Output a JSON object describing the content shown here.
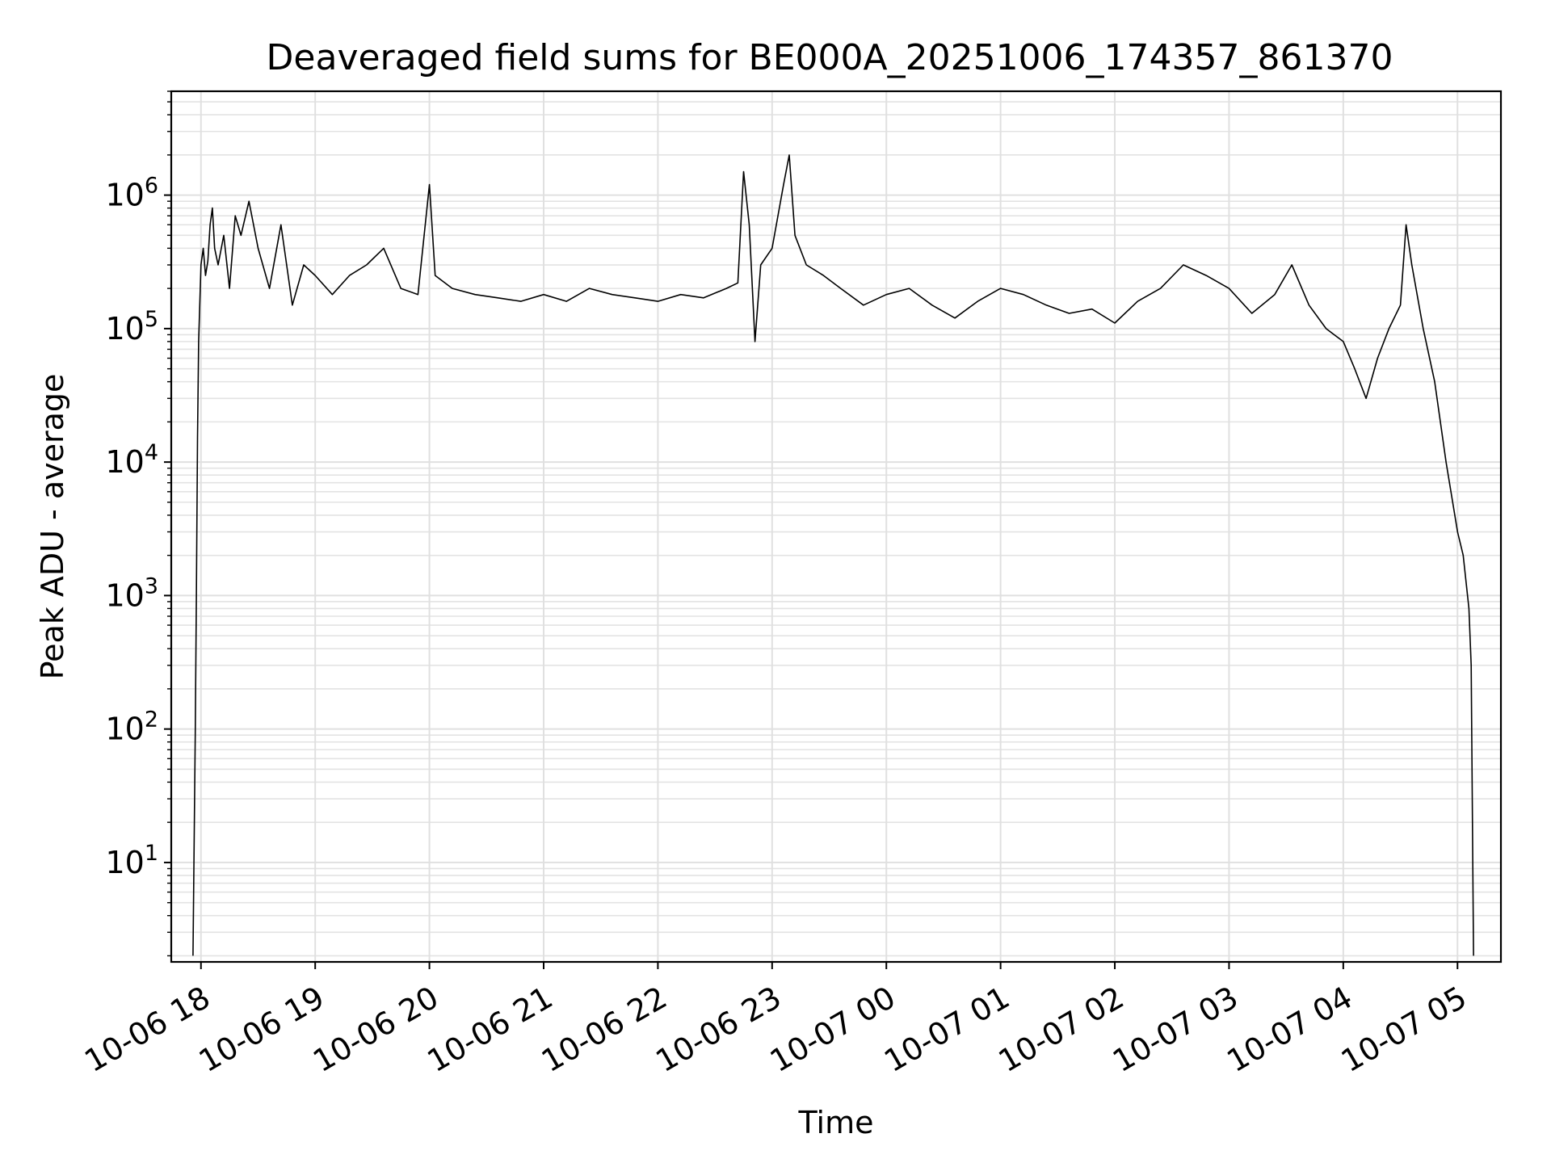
{
  "chart_data": {
    "type": "line",
    "title": "Deaveraged field sums for BE000A_20251006_174357_861370",
    "xlabel": "Time",
    "ylabel": "Peak ADU - average",
    "yscale": "log",
    "ylim": [
      1.8,
      6000000
    ],
    "x_unit": "hours since 10-06 18:00",
    "xlim": [
      -0.26,
      11.38
    ],
    "grid": true,
    "x_ticks": [
      {
        "value": 0,
        "label": "10-06 18"
      },
      {
        "value": 1,
        "label": "10-06 19"
      },
      {
        "value": 2,
        "label": "10-06 20"
      },
      {
        "value": 3,
        "label": "10-06 21"
      },
      {
        "value": 4,
        "label": "10-06 22"
      },
      {
        "value": 5,
        "label": "10-06 23"
      },
      {
        "value": 6,
        "label": "10-07 00"
      },
      {
        "value": 7,
        "label": "10-07 01"
      },
      {
        "value": 8,
        "label": "10-07 02"
      },
      {
        "value": 9,
        "label": "10-07 03"
      },
      {
        "value": 10,
        "label": "10-07 04"
      },
      {
        "value": 11,
        "label": "10-07 05"
      }
    ],
    "y_ticks": [
      {
        "value": 10,
        "base": "10",
        "exp": "1"
      },
      {
        "value": 100,
        "base": "10",
        "exp": "2"
      },
      {
        "value": 1000,
        "base": "10",
        "exp": "3"
      },
      {
        "value": 10000,
        "base": "10",
        "exp": "4"
      },
      {
        "value": 100000,
        "base": "10",
        "exp": "5"
      },
      {
        "value": 1000000,
        "base": "10",
        "exp": "6"
      }
    ],
    "series": [
      {
        "name": "deaveraged field sum",
        "color": "#000000",
        "x": [
          -0.07,
          -0.05,
          -0.04,
          -0.03,
          -0.02,
          0.0,
          0.02,
          0.04,
          0.06,
          0.08,
          0.1,
          0.12,
          0.15,
          0.2,
          0.25,
          0.3,
          0.35,
          0.42,
          0.5,
          0.6,
          0.7,
          0.8,
          0.9,
          1.0,
          1.15,
          1.3,
          1.45,
          1.6,
          1.75,
          1.9,
          2.0,
          2.05,
          2.2,
          2.4,
          2.6,
          2.8,
          3.0,
          3.2,
          3.4,
          3.6,
          3.8,
          4.0,
          4.2,
          4.4,
          4.6,
          4.7,
          4.75,
          4.8,
          4.85,
          4.9,
          5.0,
          5.1,
          5.15,
          5.2,
          5.3,
          5.45,
          5.6,
          5.8,
          6.0,
          6.2,
          6.4,
          6.6,
          6.8,
          7.0,
          7.2,
          7.4,
          7.6,
          7.8,
          8.0,
          8.2,
          8.4,
          8.6,
          8.8,
          9.0,
          9.2,
          9.4,
          9.55,
          9.7,
          9.85,
          10.0,
          10.1,
          10.2,
          10.3,
          10.4,
          10.5,
          10.55,
          10.6,
          10.7,
          10.8,
          10.9,
          11.0,
          11.05,
          11.1,
          11.12,
          11.14
        ],
        "y": [
          2,
          90,
          1000,
          15000,
          80000,
          300000,
          400000,
          250000,
          320000,
          600000,
          800000,
          400000,
          300000,
          500000,
          200000,
          700000,
          500000,
          900000,
          400000,
          200000,
          600000,
          150000,
          300000,
          250000,
          180000,
          250000,
          300000,
          400000,
          200000,
          180000,
          1200000,
          250000,
          200000,
          180000,
          170000,
          160000,
          180000,
          160000,
          200000,
          180000,
          170000,
          160000,
          180000,
          170000,
          200000,
          220000,
          1500000,
          600000,
          80000,
          300000,
          400000,
          1200000,
          2000000,
          500000,
          300000,
          250000,
          200000,
          150000,
          180000,
          200000,
          150000,
          120000,
          160000,
          200000,
          180000,
          150000,
          130000,
          140000,
          110000,
          160000,
          200000,
          300000,
          250000,
          200000,
          130000,
          180000,
          300000,
          150000,
          100000,
          80000,
          50000,
          30000,
          60000,
          100000,
          150000,
          600000,
          300000,
          100000,
          40000,
          10000,
          3000,
          2000,
          800,
          300,
          2
        ]
      }
    ]
  }
}
